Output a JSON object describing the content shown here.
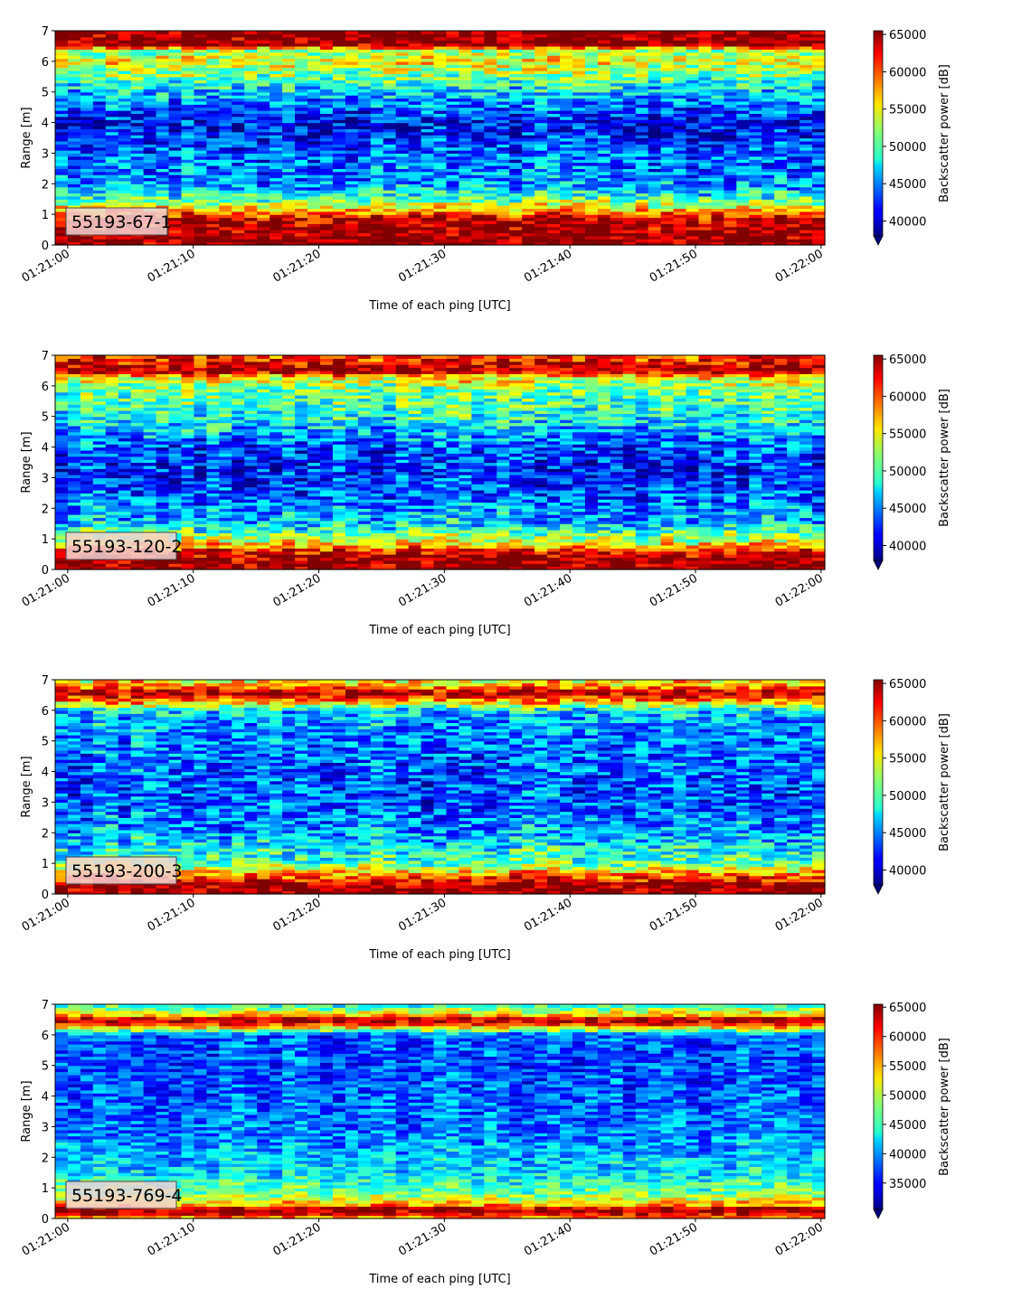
{
  "chart_data": [
    {
      "type": "heatmap",
      "label": "55193-67-1",
      "xlabel": "Time of each ping [UTC]",
      "ylabel": "Range [m]",
      "x_ticks": [
        "01:21:00",
        "01:21:10",
        "01:21:20",
        "01:21:30",
        "01:21:40",
        "01:21:50",
        "01:22:00"
      ],
      "x_range_seconds": [
        -1,
        60.3
      ],
      "ylim": [
        0,
        7
      ],
      "y_ticks": [
        0,
        1,
        2,
        3,
        4,
        5,
        6,
        7
      ],
      "colormap": "jet",
      "colorbar_label": "Backscatter power [dB]",
      "colorbar_range": [
        38000,
        65500
      ],
      "colorbar_ticks": [
        40000,
        45000,
        50000,
        55000,
        60000,
        65000
      ],
      "colorbar_extend": "min",
      "range_profile": [
        {
          "range_m": 0.0,
          "value": 65500
        },
        {
          "range_m": 0.3,
          "value": 65500
        },
        {
          "range_m": 0.9,
          "value": 63000
        },
        {
          "range_m": 1.2,
          "value": 56000
        },
        {
          "range_m": 1.6,
          "value": 49000
        },
        {
          "range_m": 2.0,
          "value": 45500
        },
        {
          "range_m": 3.0,
          "value": 44000
        },
        {
          "range_m": 4.0,
          "value": 41000
        },
        {
          "range_m": 5.0,
          "value": 47000
        },
        {
          "range_m": 5.5,
          "value": 51000
        },
        {
          "range_m": 6.0,
          "value": 55000
        },
        {
          "range_m": 6.4,
          "value": 52000
        },
        {
          "range_m": 6.5,
          "value": 65500
        },
        {
          "range_m": 7.0,
          "value": 65500
        }
      ]
    },
    {
      "type": "heatmap",
      "label": "55193-120-2",
      "xlabel": "Time of each ping [UTC]",
      "ylabel": "Range [m]",
      "x_ticks": [
        "01:21:00",
        "01:21:10",
        "01:21:20",
        "01:21:30",
        "01:21:40",
        "01:21:50",
        "01:22:00"
      ],
      "x_range_seconds": [
        -1,
        60.3
      ],
      "ylim": [
        0,
        7
      ],
      "y_ticks": [
        0,
        1,
        2,
        3,
        4,
        5,
        6,
        7
      ],
      "colormap": "jet",
      "colorbar_label": "Backscatter power [dB]",
      "colorbar_range": [
        38000,
        65500
      ],
      "colorbar_ticks": [
        40000,
        45000,
        50000,
        55000,
        60000,
        65000
      ],
      "colorbar_extend": "min",
      "range_profile": [
        {
          "range_m": 0.0,
          "value": 65500
        },
        {
          "range_m": 0.3,
          "value": 65500
        },
        {
          "range_m": 0.6,
          "value": 62000
        },
        {
          "range_m": 0.9,
          "value": 55000
        },
        {
          "range_m": 1.5,
          "value": 47000
        },
        {
          "range_m": 3.0,
          "value": 42500
        },
        {
          "range_m": 4.0,
          "value": 43500
        },
        {
          "range_m": 5.0,
          "value": 49000
        },
        {
          "range_m": 6.0,
          "value": 52000
        },
        {
          "range_m": 6.3,
          "value": 56000
        },
        {
          "range_m": 6.5,
          "value": 65500
        },
        {
          "range_m": 6.8,
          "value": 62000
        },
        {
          "range_m": 7.0,
          "value": 61000
        }
      ]
    },
    {
      "type": "heatmap",
      "label": "55193-200-3",
      "xlabel": "Time of each ping [UTC]",
      "ylabel": "Range [m]",
      "x_ticks": [
        "01:21:00",
        "01:21:10",
        "01:21:20",
        "01:21:30",
        "01:21:40",
        "01:21:50",
        "01:22:00"
      ],
      "x_range_seconds": [
        -1,
        60.3
      ],
      "ylim": [
        0,
        7
      ],
      "y_ticks": [
        0,
        1,
        2,
        3,
        4,
        5,
        6,
        7
      ],
      "colormap": "jet",
      "colorbar_label": "Backscatter power [dB]",
      "colorbar_range": [
        38000,
        65500
      ],
      "colorbar_ticks": [
        40000,
        45000,
        50000,
        55000,
        60000,
        65000
      ],
      "colorbar_extend": "min",
      "range_profile": [
        {
          "range_m": 0.0,
          "value": 65500
        },
        {
          "range_m": 0.3,
          "value": 65000
        },
        {
          "range_m": 0.6,
          "value": 60000
        },
        {
          "range_m": 1.0,
          "value": 51000
        },
        {
          "range_m": 2.0,
          "value": 46000
        },
        {
          "range_m": 3.0,
          "value": 44000
        },
        {
          "range_m": 4.0,
          "value": 44000
        },
        {
          "range_m": 5.0,
          "value": 45000
        },
        {
          "range_m": 6.0,
          "value": 47000
        },
        {
          "range_m": 6.3,
          "value": 58000
        },
        {
          "range_m": 6.6,
          "value": 65500
        },
        {
          "range_m": 6.8,
          "value": 58000
        },
        {
          "range_m": 7.0,
          "value": 55000
        }
      ]
    },
    {
      "type": "heatmap",
      "label": "55193-769-4",
      "xlabel": "Time of each ping [UTC]",
      "ylabel": "Range [m]",
      "x_ticks": [
        "01:21:00",
        "01:21:10",
        "01:21:20",
        "01:21:30",
        "01:21:40",
        "01:21:50",
        "01:22:00"
      ],
      "x_range_seconds": [
        -1,
        60.3
      ],
      "ylim": [
        0,
        7
      ],
      "y_ticks": [
        0,
        1,
        2,
        3,
        4,
        5,
        6,
        7
      ],
      "colormap": "jet",
      "colorbar_label": "Backscatter power [dB]",
      "colorbar_range": [
        30500,
        65500
      ],
      "colorbar_ticks": [
        35000,
        40000,
        45000,
        50000,
        55000,
        60000,
        65000
      ],
      "colorbar_extend": "min",
      "range_profile": [
        {
          "range_m": 0.0,
          "value": 54000
        },
        {
          "range_m": 0.15,
          "value": 62000
        },
        {
          "range_m": 0.3,
          "value": 65500
        },
        {
          "range_m": 0.45,
          "value": 56000
        },
        {
          "range_m": 0.8,
          "value": 48000
        },
        {
          "range_m": 1.5,
          "value": 43000
        },
        {
          "range_m": 3.0,
          "value": 39000
        },
        {
          "range_m": 5.0,
          "value": 37500
        },
        {
          "range_m": 6.0,
          "value": 38000
        },
        {
          "range_m": 6.35,
          "value": 60000
        },
        {
          "range_m": 6.5,
          "value": 65500
        },
        {
          "range_m": 6.65,
          "value": 55000
        },
        {
          "range_m": 7.0,
          "value": 44000
        }
      ]
    }
  ]
}
